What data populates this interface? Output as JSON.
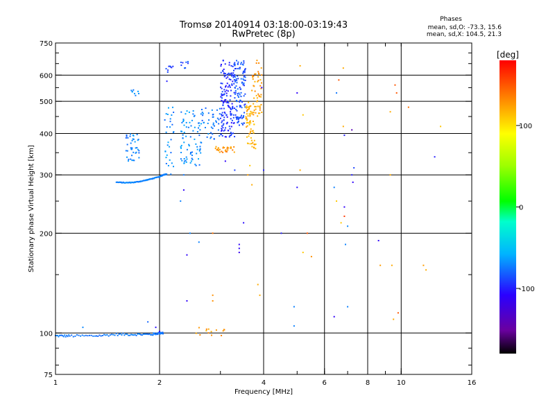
{
  "chart_data": {
    "type": "scatter",
    "title": "Tromsø 20140914 03:18:00-03:19:43",
    "subtitle": "RwPretec (8p)",
    "xlabel": "Frequency [MHz]",
    "ylabel": "Stationary phase Virtual Height [km]",
    "x_scale": "log",
    "y_scale": "log",
    "xlim": [
      1,
      16
    ],
    "ylim": [
      75,
      750
    ],
    "x_ticks": [
      1,
      2,
      4,
      6,
      8,
      10,
      16
    ],
    "x_ticklabels": [
      "1",
      "2",
      "4",
      "6",
      "8",
      "10",
      "16"
    ],
    "y_ticks": [
      75,
      100,
      200,
      300,
      400,
      500,
      600,
      750
    ],
    "y_ticklabels": [
      "75",
      "100",
      "200",
      "300",
      "400",
      "500",
      "600",
      "750"
    ],
    "grid_x": [
      2,
      4,
      6,
      8,
      10
    ],
    "grid_y": [
      100,
      200,
      300,
      400,
      500,
      600
    ],
    "phase_text": {
      "heading": "Phases",
      "line_o": "mean, sd,O: -73.3, 15.6",
      "line_x": "mean, sd,X: 104.5, 21.3"
    },
    "colorbar": {
      "label": "[deg]",
      "range": [
        -180,
        180
      ],
      "ticks": [
        100,
        0,
        -100
      ],
      "ticklabels": [
        "100",
        "0",
        "-100"
      ]
    },
    "traces": [
      {
        "kind": "curve",
        "f": [
          1.0,
          1.1,
          1.3,
          1.5,
          1.7,
          1.9,
          2.0,
          2.05
        ],
        "h": [
          98,
          98,
          98,
          99,
          99,
          99,
          100,
          100
        ],
        "phase": -75
      },
      {
        "kind": "curve",
        "f": [
          1.5,
          1.6,
          1.7,
          1.8,
          1.9,
          2.0,
          2.05,
          2.1
        ],
        "h": [
          285,
          284,
          285,
          288,
          292,
          296,
          300,
          302
        ],
        "phase": -72
      },
      {
        "kind": "cluster",
        "f": [
          1.6,
          1.75
        ],
        "h": [
          330,
          400
        ],
        "phase": -72,
        "n": 40
      },
      {
        "kind": "cluster",
        "f": [
          1.65,
          1.75
        ],
        "h": [
          520,
          545
        ],
        "phase": -70,
        "n": 8
      },
      {
        "kind": "cluster",
        "f": [
          2.05,
          2.2
        ],
        "h": [
          300,
          480
        ],
        "phase": -70,
        "n": 30
      },
      {
        "kind": "cluster",
        "f": [
          2.05,
          2.2
        ],
        "h": [
          610,
          640
        ],
        "phase": -88,
        "n": 8
      },
      {
        "kind": "cluster",
        "f": [
          2.3,
          2.65
        ],
        "h": [
          320,
          480
        ],
        "phase": -68,
        "n": 80
      },
      {
        "kind": "cluster",
        "f": [
          2.3,
          2.45
        ],
        "h": [
          620,
          660
        ],
        "phase": -88,
        "n": 8
      },
      {
        "kind": "cluster",
        "f": [
          2.65,
          3.0
        ],
        "h": [
          380,
          480
        ],
        "phase": -75,
        "n": 40
      },
      {
        "kind": "cluster",
        "f": [
          3.0,
          3.3
        ],
        "h": [
          390,
          665
        ],
        "phase": -95,
        "n": 160
      },
      {
        "kind": "cluster",
        "f": [
          3.3,
          3.55
        ],
        "h": [
          420,
          665
        ],
        "phase": -85,
        "n": 110
      },
      {
        "kind": "cluster",
        "f": [
          3.55,
          3.8
        ],
        "h": [
          360,
          500
        ],
        "phase": 118,
        "n": 70
      },
      {
        "kind": "cluster",
        "f": [
          3.7,
          3.95
        ],
        "h": [
          450,
          665
        ],
        "phase": 125,
        "n": 50
      },
      {
        "kind": "cluster",
        "f": [
          2.9,
          3.3
        ],
        "h": [
          350,
          365
        ],
        "phase": 130,
        "n": 30
      },
      {
        "kind": "cluster",
        "f": [
          2.55,
          3.1
        ],
        "h": [
          98,
          104
        ],
        "phase": 125,
        "n": 14
      }
    ],
    "points": [
      {
        "f": 1.2,
        "h": 104,
        "phase": -70
      },
      {
        "f": 1.85,
        "h": 108,
        "phase": -80
      },
      {
        "f": 1.95,
        "h": 104,
        "phase": -105
      },
      {
        "f": 2.0,
        "h": 101,
        "phase": -110
      },
      {
        "f": 2.1,
        "h": 575,
        "phase": -100
      },
      {
        "f": 2.35,
        "h": 300,
        "phase": -75
      },
      {
        "f": 2.35,
        "h": 270,
        "phase": -110
      },
      {
        "f": 2.3,
        "h": 250,
        "phase": -72
      },
      {
        "f": 2.45,
        "h": 200,
        "phase": -72
      },
      {
        "f": 2.4,
        "h": 172,
        "phase": -110
      },
      {
        "f": 2.4,
        "h": 125,
        "phase": -110
      },
      {
        "f": 2.6,
        "h": 188,
        "phase": -72
      },
      {
        "f": 2.85,
        "h": 130,
        "phase": 130
      },
      {
        "f": 2.85,
        "h": 125,
        "phase": 130
      },
      {
        "f": 2.85,
        "h": 200,
        "phase": 140
      },
      {
        "f": 3.1,
        "h": 330,
        "phase": -110
      },
      {
        "f": 3.3,
        "h": 310,
        "phase": -90
      },
      {
        "f": 3.4,
        "h": 185,
        "phase": -110
      },
      {
        "f": 3.4,
        "h": 180,
        "phase": -110
      },
      {
        "f": 3.4,
        "h": 175,
        "phase": -115
      },
      {
        "f": 3.5,
        "h": 215,
        "phase": -105
      },
      {
        "f": 3.6,
        "h": 300,
        "phase": 125
      },
      {
        "f": 3.7,
        "h": 280,
        "phase": 120
      },
      {
        "f": 3.65,
        "h": 320,
        "phase": 110
      },
      {
        "f": 3.85,
        "h": 140,
        "phase": 120
      },
      {
        "f": 3.9,
        "h": 130,
        "phase": 120
      },
      {
        "f": 4.0,
        "h": 310,
        "phase": -100
      },
      {
        "f": 3.95,
        "h": 550,
        "phase": -110
      },
      {
        "f": 4.5,
        "h": 200,
        "phase": -100
      },
      {
        "f": 4.9,
        "h": 120,
        "phase": -72
      },
      {
        "f": 4.9,
        "h": 105,
        "phase": -72
      },
      {
        "f": 5.0,
        "h": 275,
        "phase": -105
      },
      {
        "f": 5.0,
        "h": 530,
        "phase": -110
      },
      {
        "f": 5.1,
        "h": 640,
        "phase": 120
      },
      {
        "f": 5.1,
        "h": 310,
        "phase": 120
      },
      {
        "f": 5.2,
        "h": 175,
        "phase": 110
      },
      {
        "f": 5.2,
        "h": 455,
        "phase": 110
      },
      {
        "f": 5.35,
        "h": 200,
        "phase": 150
      },
      {
        "f": 5.5,
        "h": 170,
        "phase": 130
      },
      {
        "f": 6.4,
        "h": 275,
        "phase": -72
      },
      {
        "f": 6.4,
        "h": 112,
        "phase": -110
      },
      {
        "f": 6.5,
        "h": 530,
        "phase": -75
      },
      {
        "f": 6.5,
        "h": 250,
        "phase": 110
      },
      {
        "f": 6.6,
        "h": 580,
        "phase": 150
      },
      {
        "f": 6.7,
        "h": 215,
        "phase": 110
      },
      {
        "f": 6.8,
        "h": 630,
        "phase": 120
      },
      {
        "f": 6.8,
        "h": 420,
        "phase": 120
      },
      {
        "f": 6.85,
        "h": 395,
        "phase": -100
      },
      {
        "f": 6.85,
        "h": 240,
        "phase": -110
      },
      {
        "f": 6.85,
        "h": 225,
        "phase": 160
      },
      {
        "f": 6.9,
        "h": 185,
        "phase": -72
      },
      {
        "f": 7.0,
        "h": 210,
        "phase": -70
      },
      {
        "f": 7.2,
        "h": 410,
        "phase": -140
      },
      {
        "f": 7.2,
        "h": 300,
        "phase": -100
      },
      {
        "f": 7.25,
        "h": 285,
        "phase": -110
      },
      {
        "f": 7.3,
        "h": 315,
        "phase": -90
      },
      {
        "f": 7.0,
        "h": 120,
        "phase": -72
      },
      {
        "f": 8.6,
        "h": 190,
        "phase": -110
      },
      {
        "f": 8.7,
        "h": 160,
        "phase": 125
      },
      {
        "f": 9.3,
        "h": 465,
        "phase": 120
      },
      {
        "f": 9.3,
        "h": 300,
        "phase": 120
      },
      {
        "f": 9.4,
        "h": 160,
        "phase": 120
      },
      {
        "f": 9.5,
        "h": 110,
        "phase": 120
      },
      {
        "f": 9.6,
        "h": 560,
        "phase": 150
      },
      {
        "f": 9.7,
        "h": 530,
        "phase": 150
      },
      {
        "f": 9.8,
        "h": 115,
        "phase": 150
      },
      {
        "f": 10.5,
        "h": 480,
        "phase": 140
      },
      {
        "f": 11.6,
        "h": 160,
        "phase": 125
      },
      {
        "f": 11.8,
        "h": 155,
        "phase": 120
      },
      {
        "f": 12.5,
        "h": 340,
        "phase": -100
      },
      {
        "f": 13.0,
        "h": 420,
        "phase": 110
      }
    ]
  }
}
